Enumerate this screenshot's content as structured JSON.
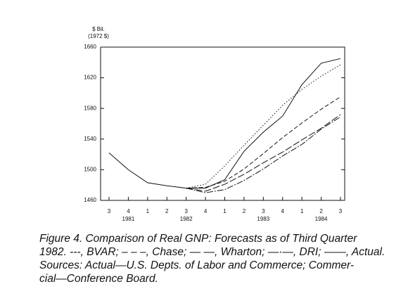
{
  "chart_data": {
    "type": "line",
    "y_label": [
      "$ Bil.",
      "(1972 $)"
    ],
    "categories": [
      "3",
      "4",
      "1",
      "2",
      "3",
      "4",
      "1",
      "2",
      "3",
      "4",
      "1",
      "2",
      "3"
    ],
    "year_labels": [
      null,
      "1981",
      null,
      null,
      "1982",
      null,
      null,
      null,
      "1983",
      null,
      null,
      "1984",
      null
    ],
    "ylim": [
      1460,
      1660
    ],
    "yticks": [
      1460,
      1500,
      1540,
      1580,
      1620,
      1660
    ],
    "series": [
      {
        "name": "BVAR",
        "color": "#111111",
        "dash": "1.5,2.5",
        "values": [
          null,
          null,
          null,
          null,
          1476,
          1481,
          1505,
          1532,
          1558,
          1584,
          1605,
          1622,
          1637
        ]
      },
      {
        "name": "Chase",
        "color": "#111111",
        "dash": "6,3",
        "values": [
          null,
          null,
          null,
          null,
          1476,
          1477,
          1485,
          1501,
          1521,
          1542,
          1561,
          1579,
          1595
        ]
      },
      {
        "name": "Wharton",
        "color": "#111111",
        "dash": "10,3",
        "values": [
          null,
          null,
          null,
          null,
          1476,
          1472,
          1481,
          1494,
          1509,
          1523,
          1539,
          1554,
          1572
        ]
      },
      {
        "name": "DRI",
        "color": "#111111",
        "dash": "9,2,2,2",
        "values": [
          null,
          null,
          null,
          null,
          1476,
          1470,
          1474,
          1486,
          1501,
          1518,
          1533,
          1553,
          1569
        ]
      },
      {
        "name": "Actual",
        "color": "#111111",
        "dash": "none",
        "values": [
          1522,
          1500,
          1483,
          1479,
          1476,
          1476,
          1487,
          1524,
          1549,
          1570,
          1611,
          1639,
          1645
        ]
      }
    ],
    "caption": [
      "Figure 4. Comparison of Real GNP: Forecasts as of Third Quarter",
      "1982. ---, BVAR; – – –, Chase; — —, Wharton; —·—, DRI; ——, Actual.",
      "Sources: Actual—U.S. Depts. of Labor and Commerce; Commer-",
      "cial—Conference Board."
    ]
  }
}
